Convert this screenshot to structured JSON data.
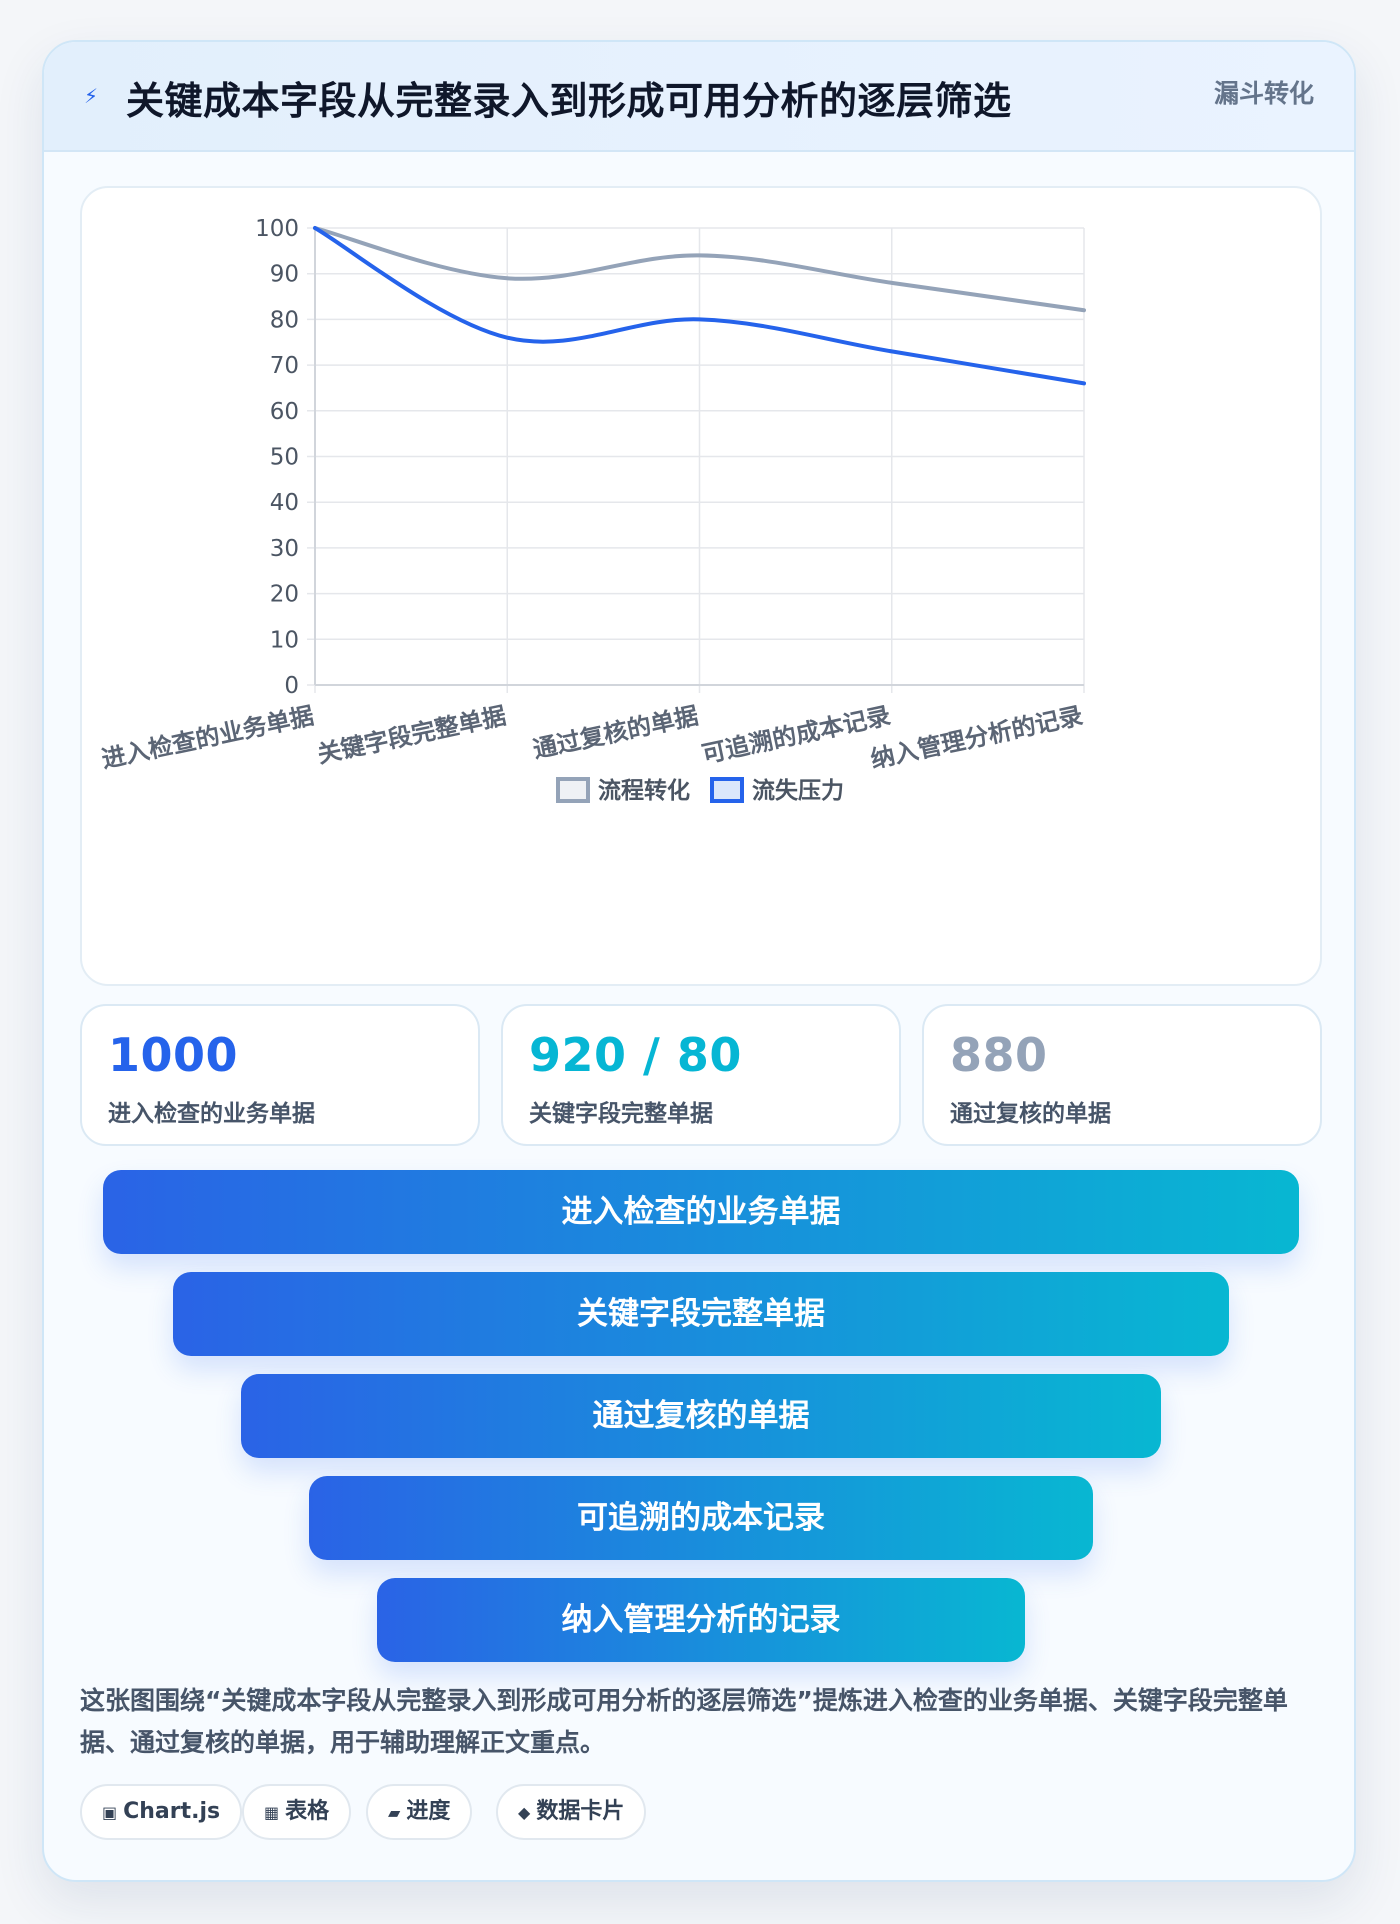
{
  "header": {
    "title": "关键成本字段从完整录入到形成可用分析的逐层筛选",
    "tag": "漏斗转化",
    "icon": "lightning-icon"
  },
  "chart_data": {
    "type": "line",
    "categories": [
      "进入检查的业务单据",
      "关键字段完整单据",
      "通过复核的单据",
      "可追溯的成本记录",
      "纳入管理分析的记录"
    ],
    "series": [
      {
        "name": "流程转化",
        "values": [
          100,
          89,
          94,
          88,
          82
        ],
        "color": "#94a3b8"
      },
      {
        "name": "流失压力",
        "values": [
          100,
          76,
          80,
          73,
          66
        ],
        "color": "#2563eb"
      }
    ],
    "ylim": [
      0,
      100
    ],
    "yticks": [
      0,
      10,
      20,
      30,
      40,
      50,
      60,
      70,
      80,
      90,
      100
    ],
    "grid": true,
    "legend": "bottom-center"
  },
  "stats": [
    {
      "value": "1000",
      "label": "进入检查的业务单据",
      "color": "#2563eb"
    },
    {
      "value": "920 / 80",
      "label": "关键字段完整单据",
      "color": "#06b6d4"
    },
    {
      "value": "880",
      "label": "通过复核的单据",
      "color": "#94a3b8"
    }
  ],
  "funnel": [
    "进入检查的业务单据",
    "关键字段完整单据",
    "通过复核的单据",
    "可追溯的成本记录",
    "纳入管理分析的记录"
  ],
  "description": "这张图围绕“关键成本字段从完整录入到形成可用分析的逐层筛选”提炼进入检查的业务单据、关键字段完整单据、通过复核的单据，用于辅助理解正文重点。",
  "chips": [
    {
      "icon": "▣",
      "label": "Chart.js"
    },
    {
      "icon": "▦",
      "label": "表格"
    },
    {
      "icon": "▰",
      "label": "进度"
    },
    {
      "icon": "◆",
      "label": "数据卡片"
    }
  ]
}
